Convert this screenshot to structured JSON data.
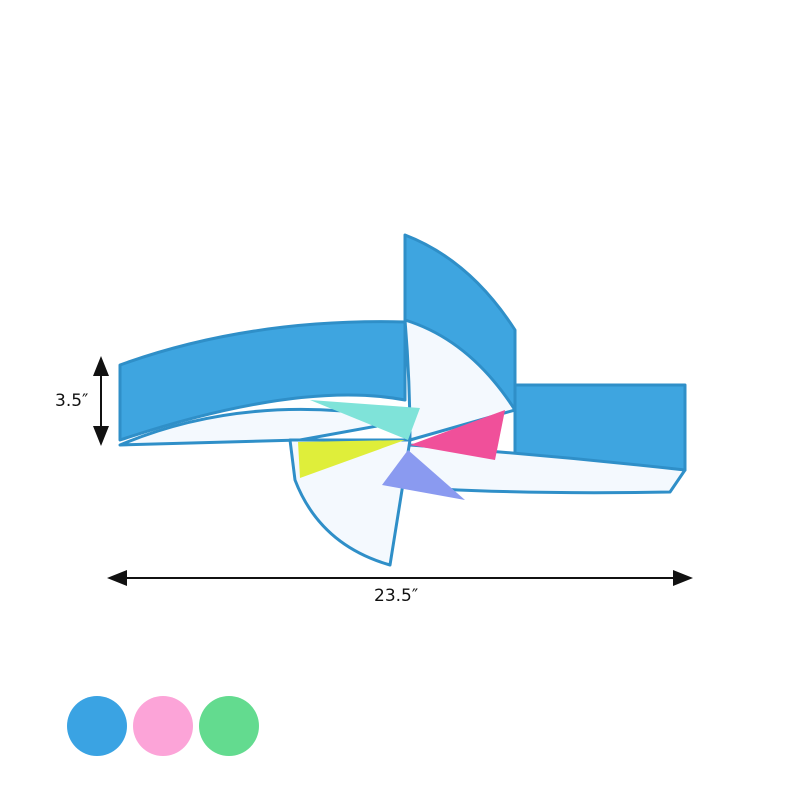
{
  "product": {
    "height_label": "3.5″",
    "width_label": "23.5″",
    "body_color": "#3aa3dd",
    "diffuser_color": "#f4f9fe"
  },
  "color_options": [
    {
      "name": "blue",
      "color": "#3aa3e3"
    },
    {
      "name": "pink",
      "color": "#fca4d8"
    },
    {
      "name": "green",
      "color": "#63db8f"
    }
  ]
}
